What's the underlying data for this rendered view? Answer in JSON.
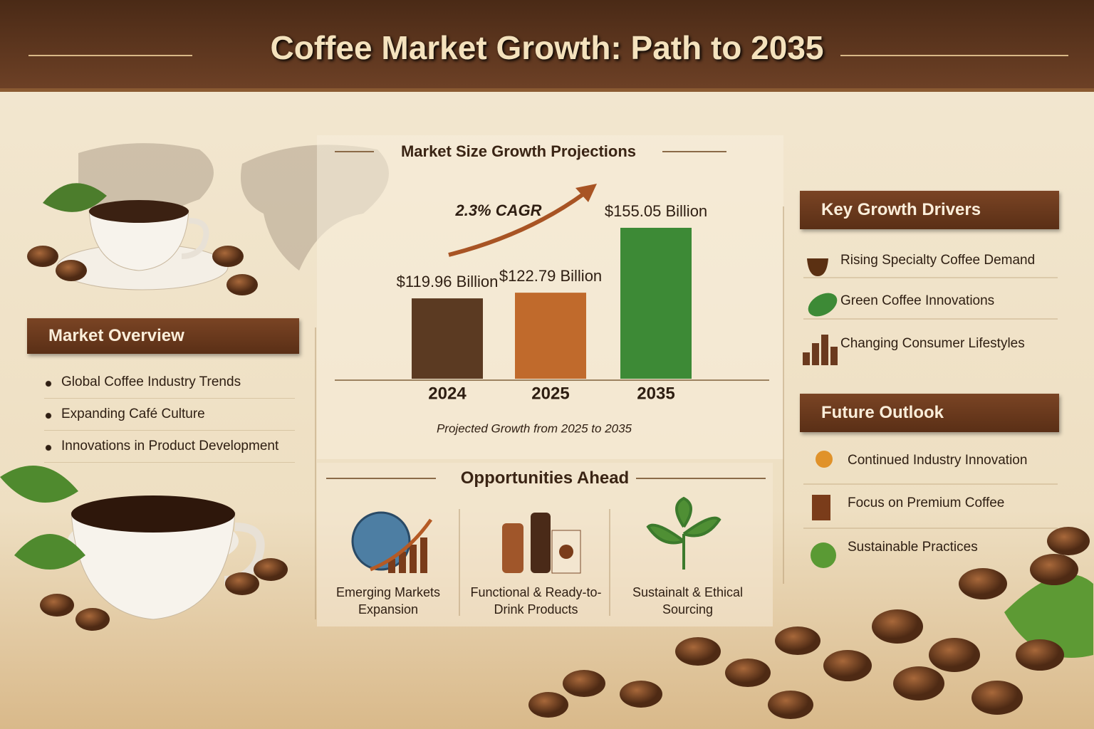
{
  "title": "Coffee Market Growth: Path to 2035",
  "market_overview": {
    "heading": "Market Overview",
    "items": [
      "Global Coffee Industry Trends",
      "Expanding Café Culture",
      "Innovations in Product Development"
    ]
  },
  "chart_data": {
    "type": "bar",
    "title": "Market Size Growth Projections",
    "annotation": "2.3% CAGR",
    "caption": "Projected Growth from 2025 to 2035",
    "categories": [
      "2024",
      "2025",
      "2035"
    ],
    "values": [
      119.96,
      122.79,
      155.05
    ],
    "value_labels": [
      "$119.96 Billion",
      "$122.79 Billion",
      "$155.05 Billion"
    ],
    "colors": [
      "#5b3a22",
      "#c06a2c",
      "#3d8a36"
    ],
    "ylim": [
      80,
      160
    ]
  },
  "opportunities": {
    "heading": "Opportunities Ahead",
    "items": [
      "Emerging Markets Expansion",
      "Functional & Ready-to-Drink Products",
      "Sustainalt & Ethical Sourcing"
    ]
  },
  "growth_drivers": {
    "heading": "Key Growth Drivers",
    "items": [
      "Rising Specialty Coffee Demand",
      "Green Coffee Innovations",
      "Changing Consumer Lifestyles"
    ]
  },
  "future_outlook": {
    "heading": "Future Outlook",
    "items": [
      "Continued Industry Innovation",
      "Focus on Premium Coffee",
      "Sustainable Practices"
    ]
  }
}
